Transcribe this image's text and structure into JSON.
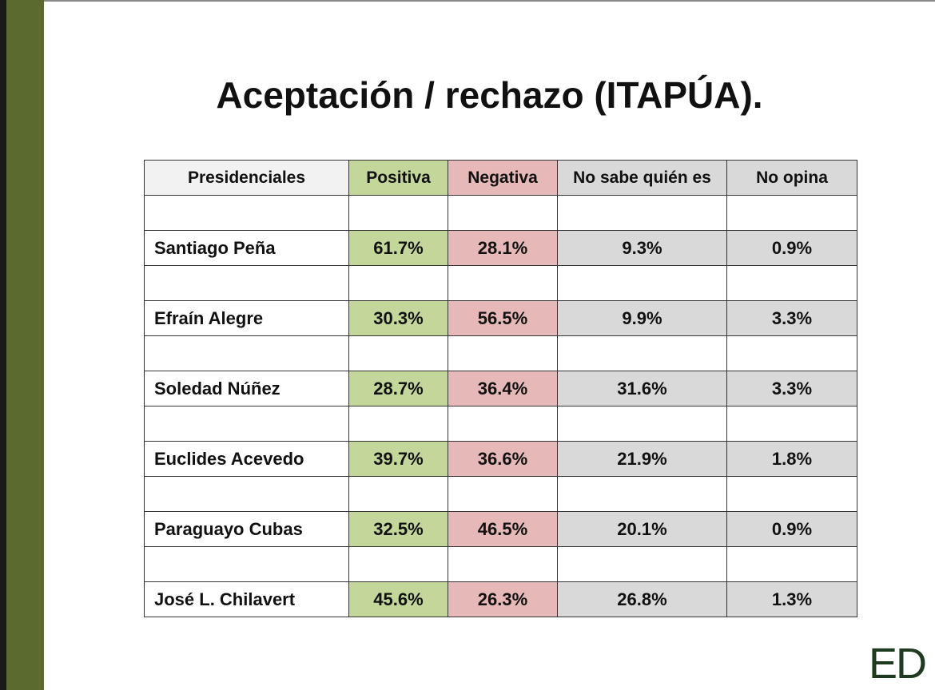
{
  "header": {
    "title": "Aceptación / rechazo (ITAPÚA)."
  },
  "table": {
    "columns": [
      "Presidenciales",
      "Positiva",
      "Negativa",
      "No sabe quién es",
      "No opina"
    ],
    "rows": [
      [
        "Santiago Peña",
        "61.7%",
        "28.1%",
        "9.3%",
        "0.9%"
      ],
      [
        "Efraín Alegre",
        "30.3%",
        "56.5%",
        "9.9%",
        "3.3%"
      ],
      [
        "Soledad Núñez",
        "28.7%",
        "36.4%",
        "31.6%",
        "3.3%"
      ],
      [
        "Euclides Acevedo",
        "39.7%",
        "36.6%",
        "21.9%",
        "1.8%"
      ],
      [
        "Paraguayo Cubas",
        "32.5%",
        "46.5%",
        "20.1%",
        "0.9%"
      ],
      [
        "José L. Chilavert",
        "45.6%",
        "26.3%",
        "26.8%",
        "1.3%"
      ]
    ]
  },
  "logo": "ED"
}
